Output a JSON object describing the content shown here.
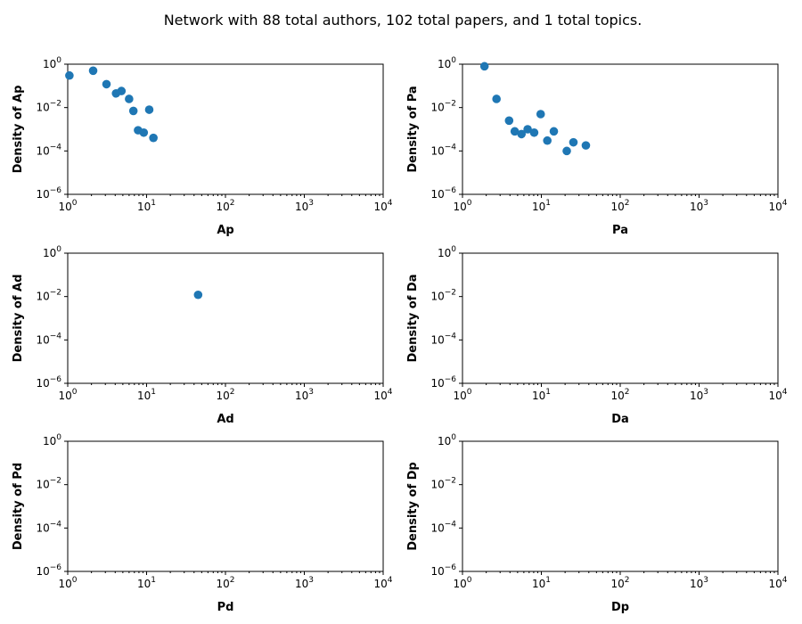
{
  "figure": {
    "title": "Network with 88 total authors, 102 total papers, and 1 total topics."
  },
  "chart_data": [
    {
      "type": "scatter",
      "xlabel": "Ap",
      "ylabel": "Density of Ap",
      "xscale": "log",
      "yscale": "log",
      "xlim": [
        1,
        10000
      ],
      "ylim": [
        1e-06,
        1
      ],
      "xticks": [
        "1",
        "10",
        "100",
        "1000",
        "10000"
      ],
      "yticks": [
        "0.000001",
        "0.0001",
        "0.01",
        "1"
      ],
      "grid": false,
      "color": "#1f77b4",
      "points": [
        {
          "x": 1.05,
          "y": 0.3
        },
        {
          "x": 2.1,
          "y": 0.5
        },
        {
          "x": 3.1,
          "y": 0.12
        },
        {
          "x": 4.1,
          "y": 0.045
        },
        {
          "x": 4.8,
          "y": 0.058
        },
        {
          "x": 6.0,
          "y": 0.025
        },
        {
          "x": 6.8,
          "y": 0.007
        },
        {
          "x": 7.8,
          "y": 0.0009
        },
        {
          "x": 9.2,
          "y": 0.0007
        },
        {
          "x": 10.8,
          "y": 0.008
        },
        {
          "x": 12.2,
          "y": 0.0004
        }
      ]
    },
    {
      "type": "scatter",
      "xlabel": "Pa",
      "ylabel": "Density of Pa",
      "xscale": "log",
      "yscale": "log",
      "xlim": [
        1,
        10000
      ],
      "ylim": [
        1e-06,
        1
      ],
      "xticks": [
        "1",
        "10",
        "100",
        "1000",
        "10000"
      ],
      "yticks": [
        "0.000001",
        "0.0001",
        "0.01",
        "1"
      ],
      "grid": false,
      "color": "#1f77b4",
      "points": [
        {
          "x": 1.9,
          "y": 0.8
        },
        {
          "x": 2.7,
          "y": 0.025
        },
        {
          "x": 3.9,
          "y": 0.0025
        },
        {
          "x": 4.6,
          "y": 0.0008
        },
        {
          "x": 5.6,
          "y": 0.0006
        },
        {
          "x": 6.7,
          "y": 0.001
        },
        {
          "x": 8.1,
          "y": 0.0007
        },
        {
          "x": 9.8,
          "y": 0.005
        },
        {
          "x": 11.9,
          "y": 0.0003
        },
        {
          "x": 14.4,
          "y": 0.0008
        },
        {
          "x": 21.0,
          "y": 0.0001
        },
        {
          "x": 25.5,
          "y": 0.00025
        },
        {
          "x": 36.7,
          "y": 0.00018
        }
      ]
    },
    {
      "type": "scatter",
      "xlabel": "Ad",
      "ylabel": "Density of Ad",
      "xscale": "log",
      "yscale": "log",
      "xlim": [
        1,
        10000
      ],
      "ylim": [
        1e-06,
        1
      ],
      "xticks": [
        "1",
        "10",
        "100",
        "1000",
        "10000"
      ],
      "yticks": [
        "0.000001",
        "0.0001",
        "0.01",
        "1"
      ],
      "grid": false,
      "color": "#1f77b4",
      "points": [
        {
          "x": 45,
          "y": 0.012
        }
      ]
    },
    {
      "type": "scatter",
      "xlabel": "Da",
      "ylabel": "Density of Da",
      "xscale": "log",
      "yscale": "log",
      "xlim": [
        1,
        10000
      ],
      "ylim": [
        1e-06,
        1
      ],
      "xticks": [
        "1",
        "10",
        "100",
        "1000",
        "10000"
      ],
      "yticks": [
        "0.000001",
        "0.0001",
        "0.01",
        "1"
      ],
      "grid": false,
      "color": "#1f77b4",
      "points": []
    },
    {
      "type": "scatter",
      "xlabel": "Pd",
      "ylabel": "Density of Pd",
      "xscale": "log",
      "yscale": "log",
      "xlim": [
        1,
        10000
      ],
      "ylim": [
        1e-06,
        1
      ],
      "xticks": [
        "1",
        "10",
        "100",
        "1000",
        "10000"
      ],
      "yticks": [
        "0.000001",
        "0.0001",
        "0.01",
        "1"
      ],
      "grid": false,
      "color": "#1f77b4",
      "points": []
    },
    {
      "type": "scatter",
      "xlabel": "Dp",
      "ylabel": "Density of Dp",
      "xscale": "log",
      "yscale": "log",
      "xlim": [
        1,
        10000
      ],
      "ylim": [
        1e-06,
        1
      ],
      "xticks": [
        "1",
        "10",
        "100",
        "1000",
        "10000"
      ],
      "yticks": [
        "0.000001",
        "0.0001",
        "0.01",
        "1"
      ],
      "grid": false,
      "color": "#1f77b4",
      "points": []
    }
  ]
}
